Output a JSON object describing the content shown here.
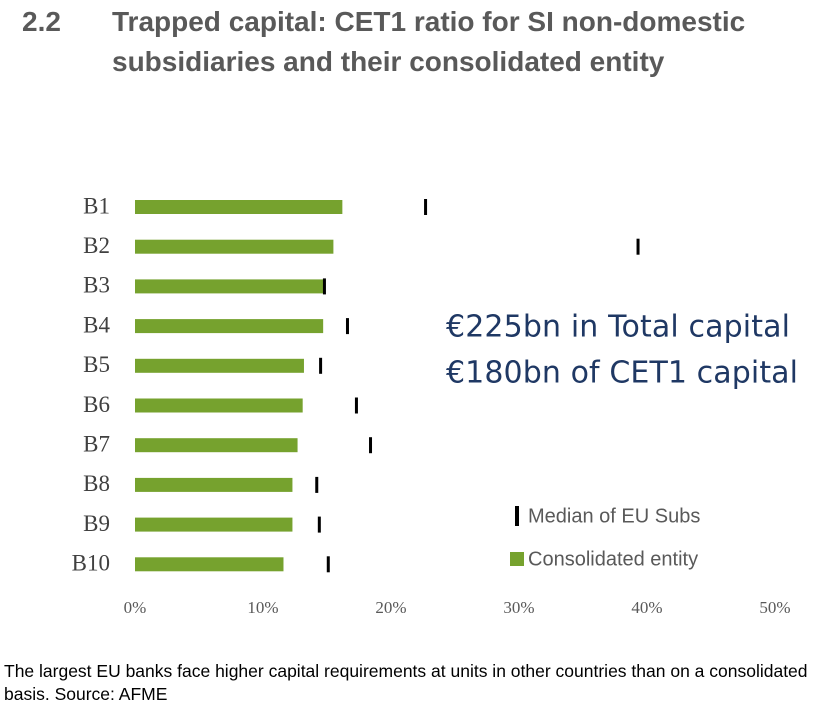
{
  "section": "2.2",
  "caption": "The largest EU banks face higher capital requirements at units in other countries than on a consolidated basis. Source: AFME",
  "chart_data": {
    "type": "bar",
    "orientation": "horizontal",
    "title": "Trapped capital: CET1 ratio for SI non-domestic subsidiaries and their consolidated entity",
    "categories": [
      "B1",
      "B2",
      "B3",
      "B4",
      "B5",
      "B6",
      "B7",
      "B8",
      "B9",
      "B10"
    ],
    "series": [
      {
        "name": "Median of EU Subs",
        "mark": "tick",
        "color": "#000000",
        "values": [
          22.7,
          39.3,
          14.8,
          16.6,
          14.5,
          17.3,
          18.4,
          14.2,
          14.4,
          15.1
        ]
      },
      {
        "name": "Consolidated entity",
        "mark": "bar",
        "color": "#76a22e",
        "values": [
          16.2,
          15.5,
          14.8,
          14.7,
          13.2,
          13.1,
          12.7,
          12.3,
          12.3,
          11.6
        ]
      }
    ],
    "xlim": [
      0,
      50
    ],
    "xticks": [
      {
        "value": 0,
        "label": "0%"
      },
      {
        "value": 10,
        "label": "10%"
      },
      {
        "value": 20,
        "label": "20%"
      },
      {
        "value": 30,
        "label": "30%"
      },
      {
        "value": 40,
        "label": "40%"
      },
      {
        "value": 50,
        "label": "50%"
      }
    ],
    "annotations": [
      "€225bn in Total capital",
      "€180bn of CET1 capital"
    ],
    "annotation_color": "#1f3864",
    "grid": false
  }
}
